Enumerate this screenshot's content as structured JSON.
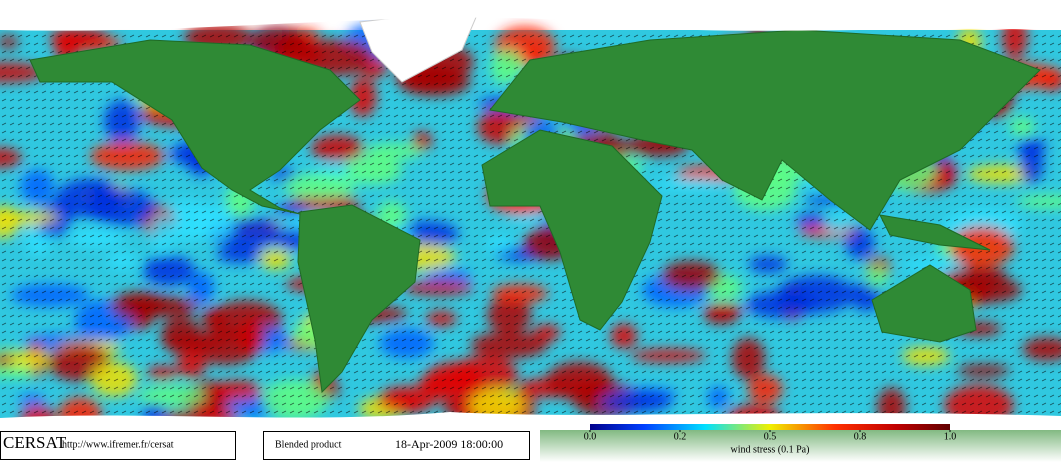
{
  "footer": {
    "logo": "CERSAT",
    "url": "http://www.ifremer.fr/cersat",
    "product": "Blended product",
    "date": "18-Apr-2009 18:00:00"
  },
  "colorbar": {
    "ticks": [
      "0.0",
      "0.2",
      "0.5",
      "0.8",
      "1.0"
    ],
    "label": "wind stress (0.1 Pa)"
  }
}
